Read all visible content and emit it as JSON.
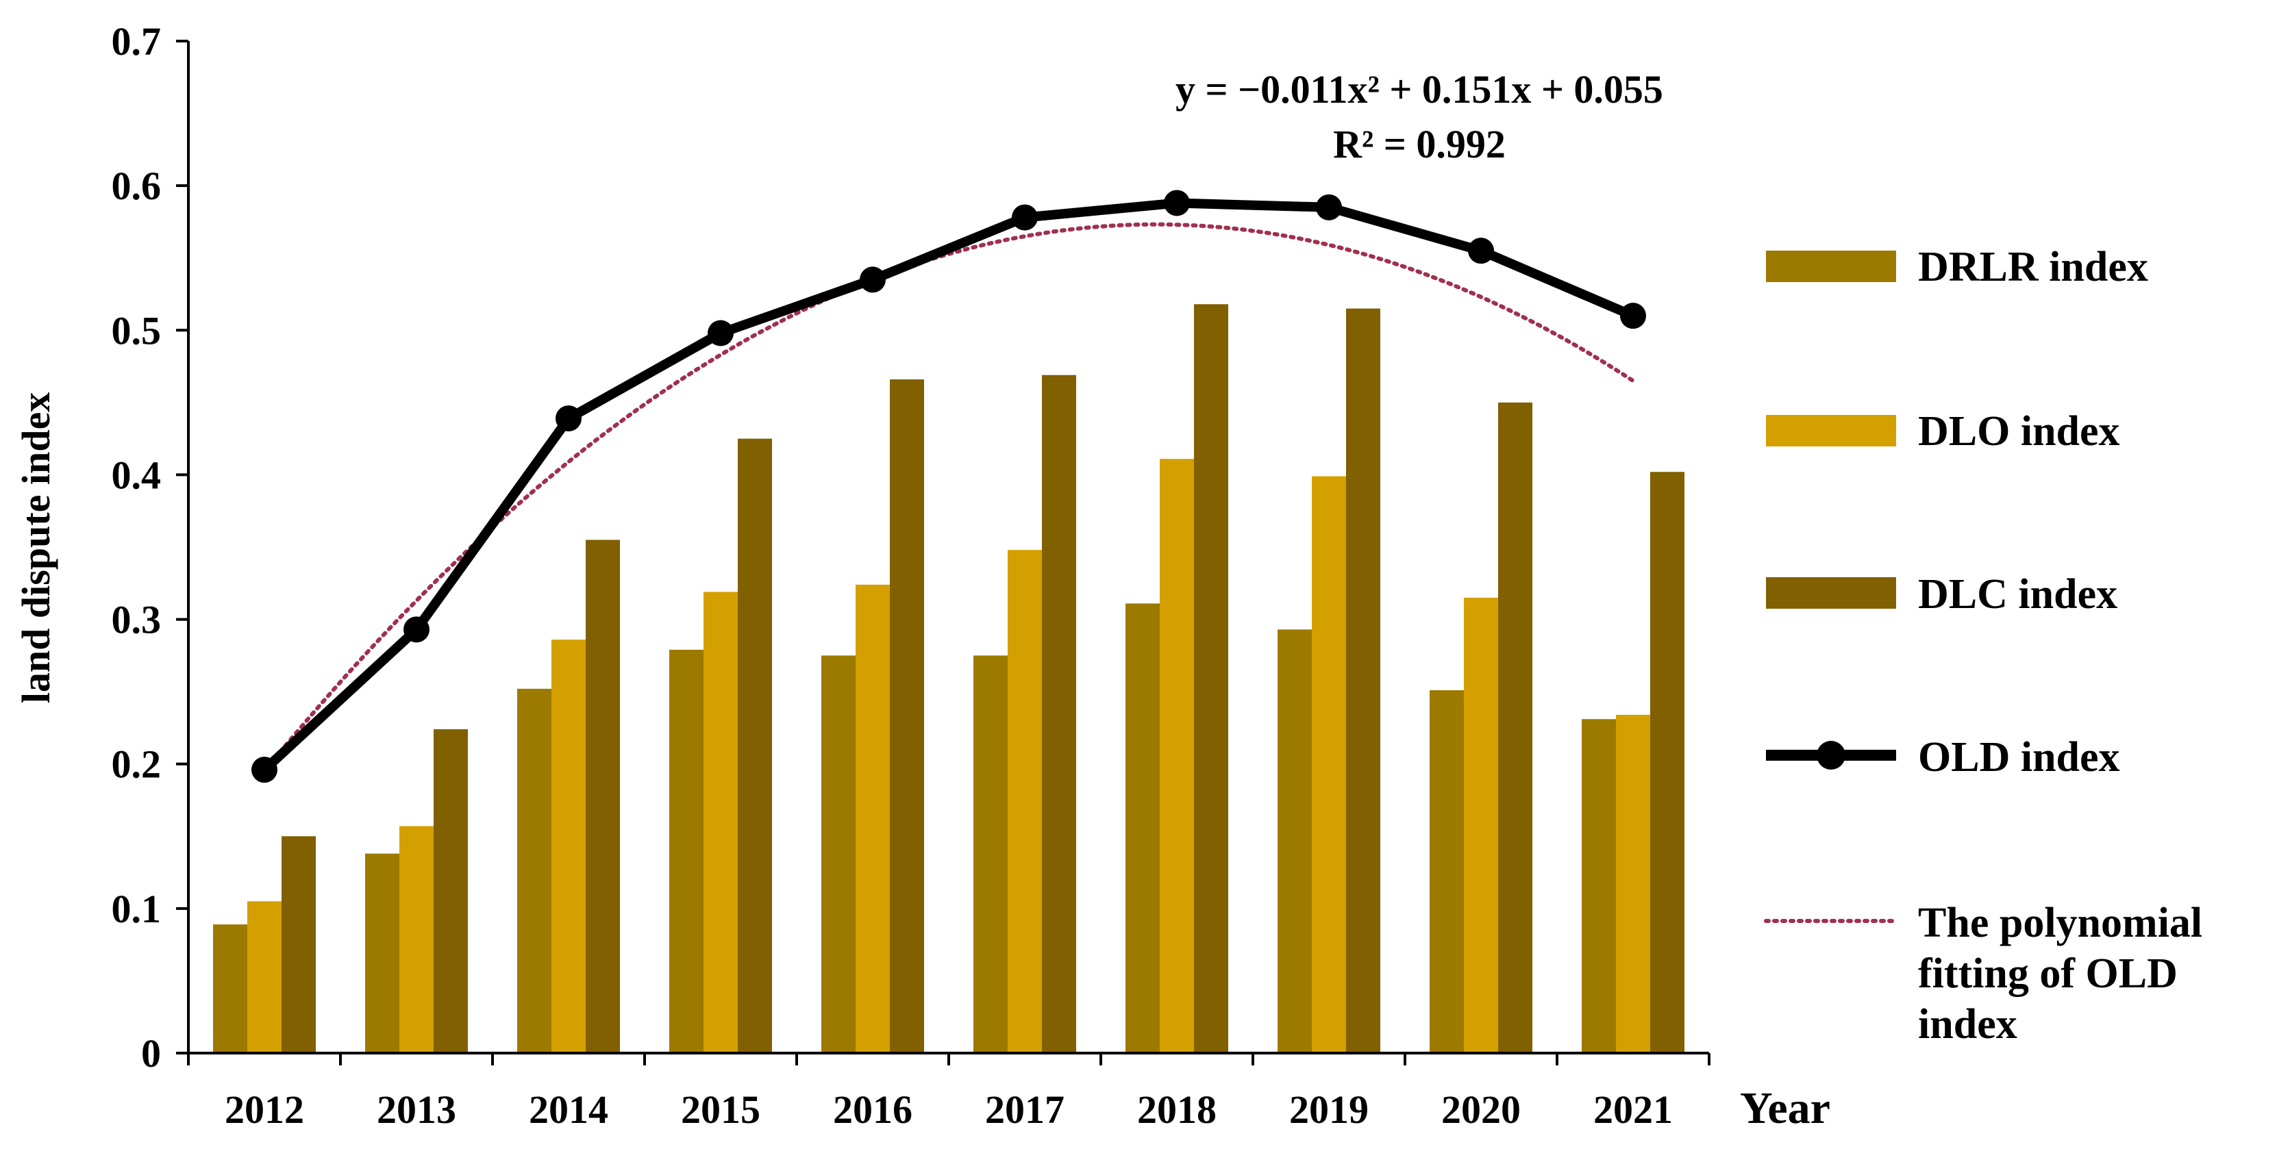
{
  "chart_data": {
    "type": "bar",
    "title": "",
    "xlabel": "Year",
    "ylabel": "land dispute index",
    "categories": [
      "2012",
      "2013",
      "2014",
      "2015",
      "2016",
      "2017",
      "2018",
      "2019",
      "2020",
      "2021"
    ],
    "ylim": [
      0,
      0.7
    ],
    "yticks": [
      0,
      0.1,
      0.2,
      0.3,
      0.4,
      0.5,
      0.6,
      0.7
    ],
    "ytick_labels": [
      "0",
      "0.1",
      "0.2",
      "0.3",
      "0.4",
      "0.5",
      "0.6",
      "0.7"
    ],
    "grid": false,
    "legend_position": "right",
    "series": [
      {
        "name": "DRLR index",
        "kind": "bar",
        "color": "#9C7A00",
        "values": [
          0.089,
          0.138,
          0.252,
          0.279,
          0.275,
          0.275,
          0.311,
          0.293,
          0.251,
          0.231
        ]
      },
      {
        "name": "DLO index",
        "kind": "bar",
        "color": "#D4A000",
        "values": [
          0.105,
          0.157,
          0.286,
          0.319,
          0.324,
          0.348,
          0.411,
          0.399,
          0.315,
          0.234
        ]
      },
      {
        "name": "DLC index",
        "kind": "bar",
        "color": "#806000",
        "values": [
          0.15,
          0.224,
          0.355,
          0.425,
          0.466,
          0.469,
          0.518,
          0.515,
          0.45,
          0.402
        ]
      },
      {
        "name": "OLD index",
        "kind": "line",
        "color": "#000000",
        "values": [
          0.196,
          0.293,
          0.439,
          0.498,
          0.535,
          0.578,
          0.588,
          0.585,
          0.555,
          0.51
        ]
      }
    ],
    "trendline": {
      "name": "The polynomial fitting of OLD index",
      "color": "#A0304E",
      "coefficients": {
        "a": -0.011,
        "b": 0.151,
        "c": 0.055
      },
      "equation_text": "y = −0.011x² + 0.151x + 0.055",
      "r2_text": "R² = 0.992"
    }
  }
}
